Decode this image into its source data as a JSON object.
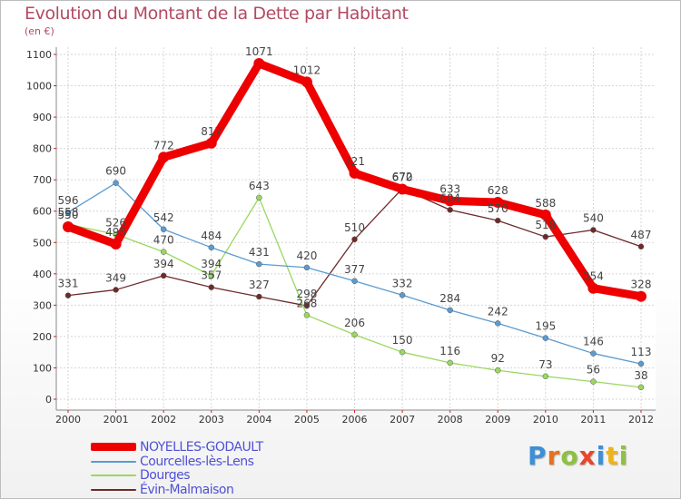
{
  "title": "Evolution du Montant de la Dette par Habitant",
  "unit": "(en €)",
  "logo": {
    "letters": [
      "P",
      "r",
      "o",
      "x",
      "i",
      "t",
      "i"
    ],
    "colors": [
      "#3d8fd6",
      "#e8711c",
      "#8dc13f",
      "#e8452c",
      "#3d8fd6",
      "#f0b418",
      "#8dc13f"
    ]
  },
  "chart_data": {
    "type": "line",
    "title": "Evolution du Montant de la Dette par Habitant",
    "ylabel": "(en €)",
    "xlabel": "",
    "ylim": [
      0,
      1100
    ],
    "yticks": [
      0,
      100,
      200,
      300,
      400,
      500,
      600,
      700,
      800,
      900,
      1000,
      1100
    ],
    "categories": [
      "2000",
      "2001",
      "2002",
      "2003",
      "2004",
      "2005",
      "2006",
      "2007",
      "2008",
      "2009",
      "2010",
      "2011",
      "2012"
    ],
    "grid": true,
    "legend_position": "bottom-left",
    "series": [
      {
        "name": "Évin-Malmaison",
        "color": "#6e2a2a",
        "values": [
          331,
          349,
          394,
          357,
          327,
          298,
          510,
          672,
          604,
          570,
          518,
          540,
          487
        ],
        "labels": [
          "331",
          "349",
          "394",
          "357",
          "327",
          "298",
          "510",
          "672",
          "604",
          "570",
          "518",
          "540",
          "487"
        ]
      },
      {
        "name": "Dourges",
        "color": "#9ad85e",
        "values": [
          558,
          526,
          470,
          394,
          643,
          268,
          206,
          150,
          116,
          92,
          73,
          56,
          38
        ],
        "labels": [
          "558",
          "526",
          "470",
          "394",
          "643",
          "268",
          "206",
          "150",
          "116",
          "92",
          "73",
          "56",
          "38"
        ]
      },
      {
        "name": "Courcelles-lès-Lens",
        "color": "#5b9bd0",
        "values": [
          596,
          690,
          542,
          484,
          431,
          420,
          377,
          332,
          284,
          242,
          195,
          146,
          113
        ],
        "labels": [
          "596",
          "690",
          "542",
          "484",
          "431",
          "420",
          "377",
          "332",
          "284",
          "242",
          "195",
          "146",
          "113"
        ]
      },
      {
        "name": "NOYELLES-GODAULT",
        "color": "#ee0000",
        "values": [
          550,
          495,
          772,
          817,
          1071,
          1012,
          721,
          670,
          633,
          628,
          588,
          354,
          328
        ],
        "labels": [
          "550",
          "495",
          "772",
          "817",
          "1071",
          "1012",
          "721",
          "670",
          "633",
          "628",
          "588",
          "354",
          "328"
        ]
      }
    ],
    "legend_order": [
      "NOYELLES-GODAULT",
      "Courcelles-lès-Lens",
      "Dourges",
      "Évin-Malmaison"
    ]
  }
}
